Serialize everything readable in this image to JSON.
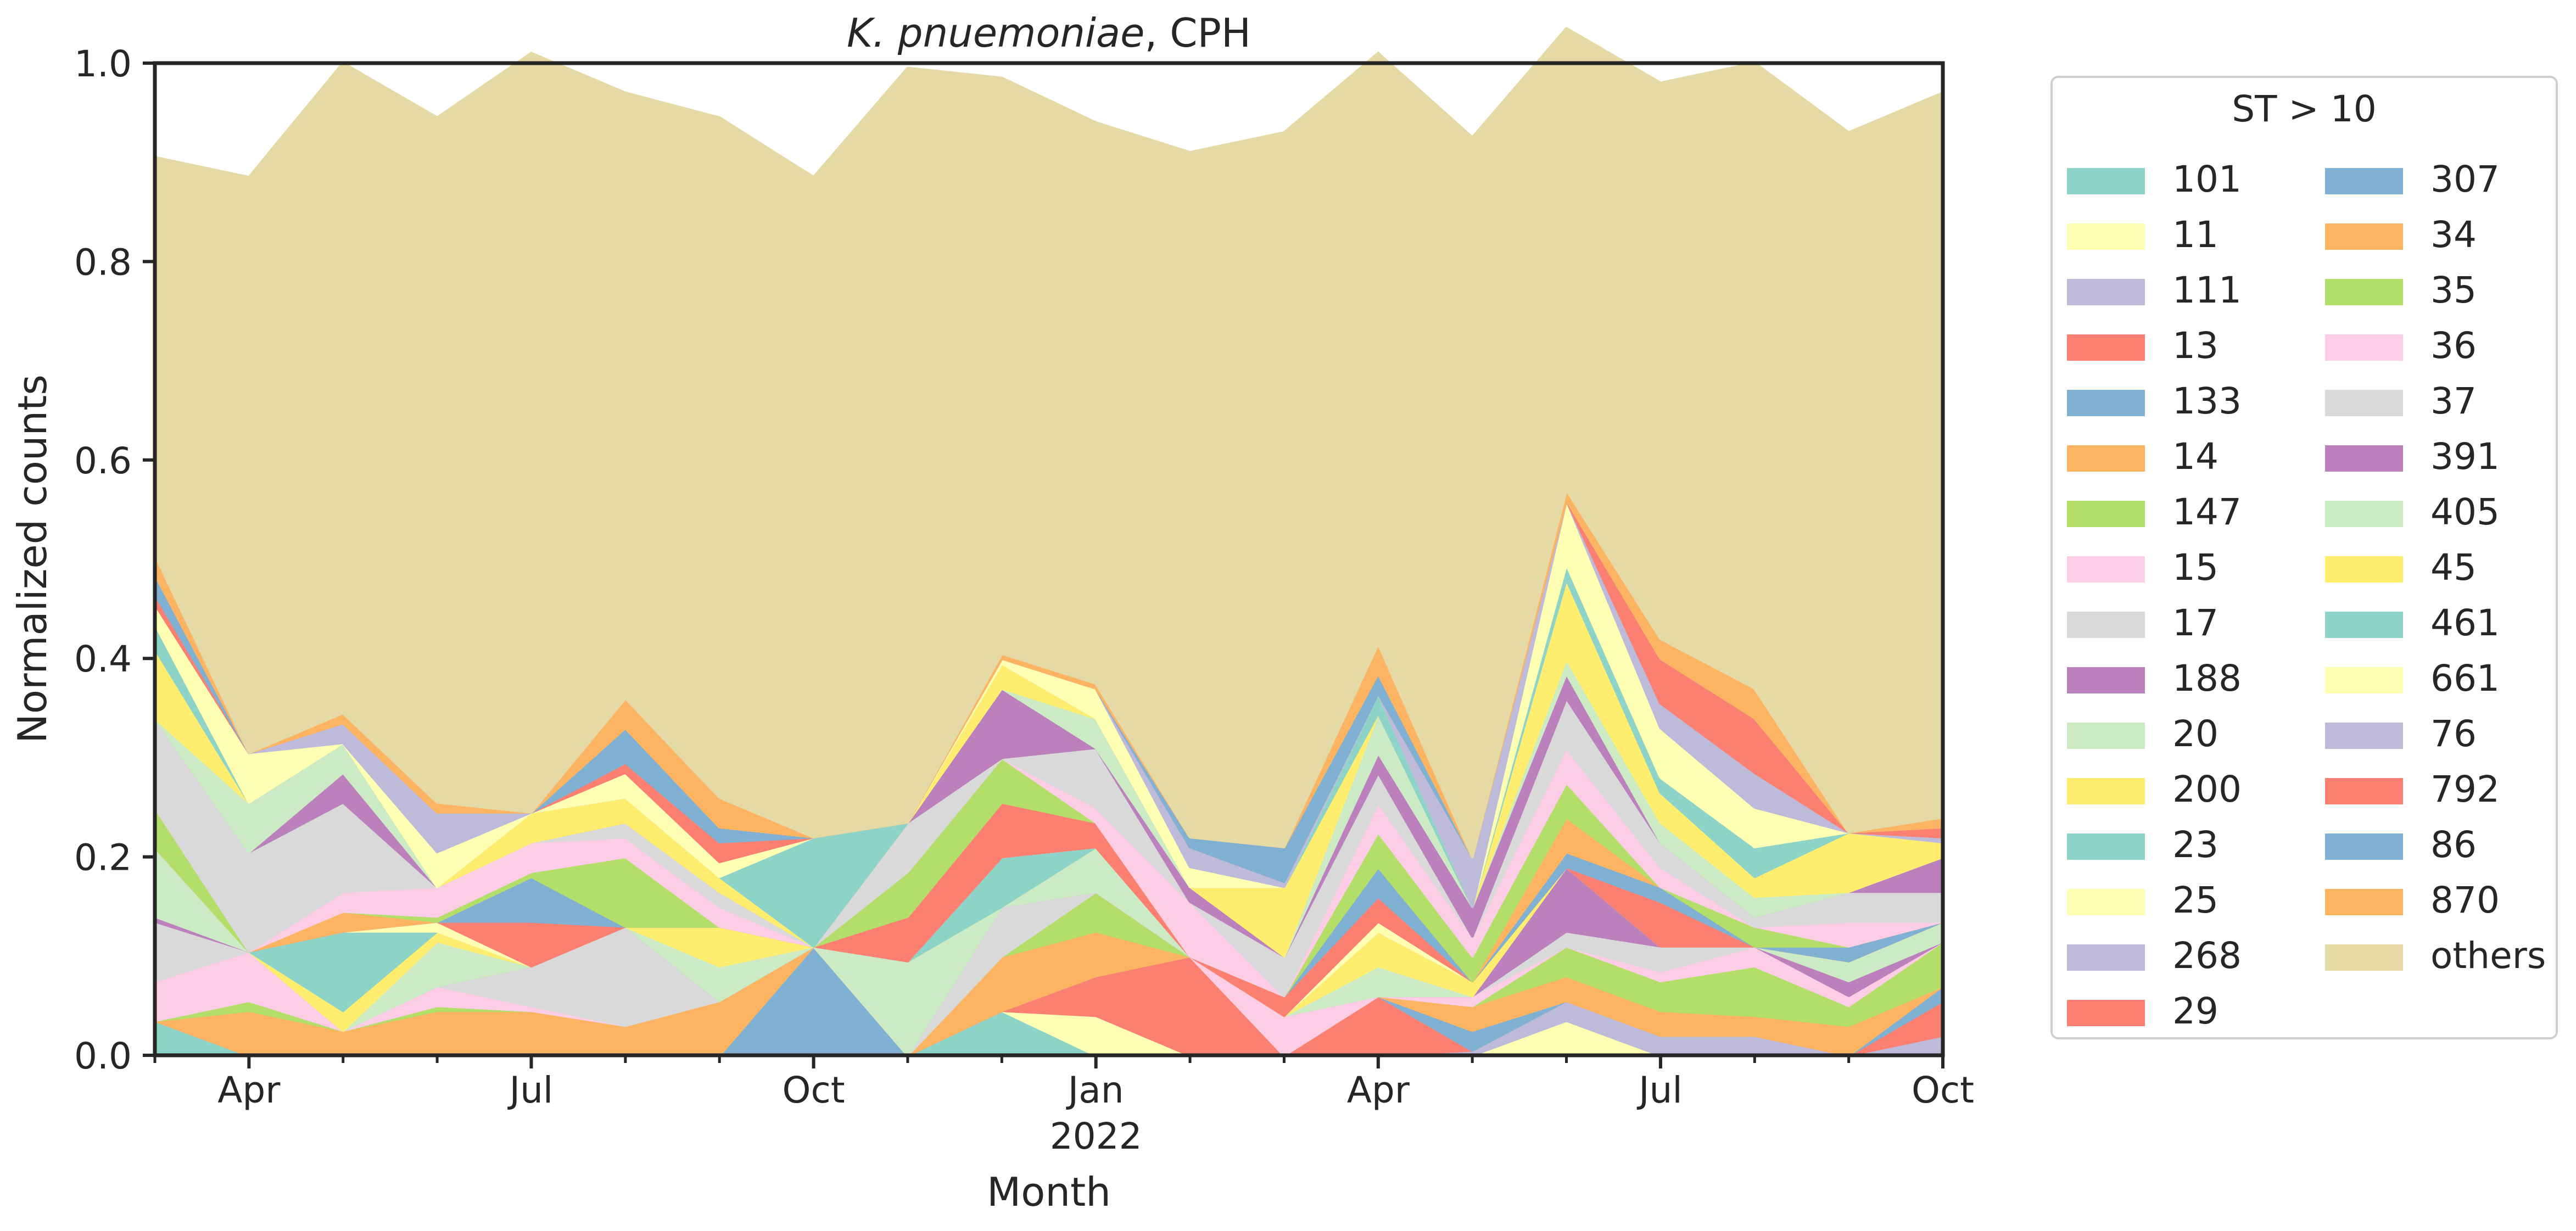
{
  "chart_data": {
    "type": "area",
    "stacked": true,
    "normalized": true,
    "title_italic": "K. pnuemoniae",
    "title_rest": ", CPH",
    "xlabel": "Month",
    "ylabel": "Normalized counts",
    "ylim": [
      0,
      1
    ],
    "y_ticks": [
      "0.0",
      "0.2",
      "0.4",
      "0.6",
      "0.8",
      "1.0"
    ],
    "x_months": [
      "2021-03",
      "2021-04",
      "2021-05",
      "2021-06",
      "2021-07",
      "2021-08",
      "2021-09",
      "2021-10",
      "2021-11",
      "2021-12",
      "2022-01",
      "2022-02",
      "2022-03",
      "2022-04",
      "2022-05",
      "2022-06",
      "2022-07",
      "2022-08",
      "2022-09",
      "2022-10"
    ],
    "x_tick_labels": [
      {
        "month": "2021-04",
        "label": "Apr"
      },
      {
        "month": "2021-07",
        "label": "Jul"
      },
      {
        "month": "2021-10",
        "label": "Oct"
      },
      {
        "month": "2022-01",
        "label": "Jan",
        "sublabel": "2022"
      },
      {
        "month": "2022-04",
        "label": "Apr"
      },
      {
        "month": "2022-07",
        "label": "Jul"
      },
      {
        "month": "2022-10",
        "label": "Oct"
      }
    ],
    "legend_title": "ST > 10",
    "legend_position": "outside-right",
    "series": [
      {
        "name": "101",
        "color": "#8dd3c7",
        "values": [
          0.035,
          0,
          0,
          0,
          0,
          0,
          0,
          0,
          0,
          0.045,
          0,
          0,
          0,
          0,
          0,
          0,
          0,
          0,
          0,
          0
        ]
      },
      {
        "name": "11",
        "color": "#ffffb3",
        "values": [
          0,
          0,
          0,
          0,
          0,
          0,
          0,
          0,
          0,
          0,
          0.04,
          0,
          0,
          0,
          0,
          0.035,
          0,
          0,
          0,
          0
        ]
      },
      {
        "name": "111",
        "color": "#bebada",
        "values": [
          0,
          0,
          0,
          0,
          0,
          0,
          0,
          0,
          0,
          0,
          0,
          0,
          0,
          0,
          0.005,
          0.02,
          0.02,
          0.02,
          0,
          0.02
        ]
      },
      {
        "name": "13",
        "color": "#fb8072",
        "values": [
          0,
          0,
          0,
          0,
          0,
          0,
          0,
          0,
          0,
          0,
          0.04,
          0.1,
          0,
          0.06,
          0,
          0,
          0,
          0,
          0,
          0.035
        ]
      },
      {
        "name": "133",
        "color": "#80b1d3",
        "values": [
          0,
          0,
          0,
          0,
          0,
          0,
          0,
          0.11,
          0,
          0,
          0,
          0,
          0,
          0,
          0.02,
          0,
          0,
          0,
          0,
          0.015
        ]
      },
      {
        "name": "14",
        "color": "#fdb462",
        "values": [
          0,
          0.045,
          0.025,
          0.045,
          0.045,
          0.03,
          0.055,
          0,
          0,
          0.055,
          0.045,
          0,
          0,
          0,
          0.025,
          0.025,
          0.025,
          0.02,
          0.03,
          0
        ]
      },
      {
        "name": "147",
        "color": "#b3de69",
        "values": [
          0,
          0.01,
          0,
          0.005,
          0,
          0,
          0,
          0,
          0,
          0,
          0.04,
          0,
          0,
          0,
          0,
          0.03,
          0.03,
          0.05,
          0.02,
          0.045
        ]
      },
      {
        "name": "15",
        "color": "#fccde5",
        "values": [
          0.04,
          0.05,
          0,
          0.02,
          0.005,
          0,
          0,
          0,
          0,
          0,
          0,
          0,
          0.04,
          0,
          0.01,
          0,
          0.01,
          0.02,
          0.01,
          0
        ]
      },
      {
        "name": "17",
        "color": "#d9d9d9",
        "values": [
          0.06,
          0,
          0,
          0,
          0.04,
          0.1,
          0,
          0,
          0,
          0.05,
          0,
          0,
          0,
          0,
          0,
          0.015,
          0.025,
          0,
          0,
          0
        ]
      },
      {
        "name": "188",
        "color": "#bc80bd",
        "values": [
          0.005,
          0,
          0,
          0,
          0,
          0,
          0,
          0,
          0,
          0,
          0,
          0,
          0,
          0,
          0,
          0.065,
          0,
          0,
          0.015,
          0
        ]
      },
      {
        "name": "20",
        "color": "#ccebc5",
        "values": [
          0.07,
          0,
          0,
          0.045,
          0,
          0,
          0.035,
          0,
          0.095,
          0,
          0.045,
          0,
          0,
          0.03,
          0,
          0,
          0,
          0,
          0.02,
          0.02
        ]
      },
      {
        "name": "200",
        "color": "#ffed6f",
        "values": [
          0,
          0,
          0.02,
          0.01,
          0,
          0,
          0.04,
          0,
          0,
          0,
          0,
          0,
          0,
          0.035,
          0.015,
          0,
          0,
          0,
          0,
          0
        ]
      },
      {
        "name": "23",
        "color": "#8dd3c7",
        "values": [
          0,
          0,
          0.08,
          0,
          0,
          0,
          0,
          0,
          0,
          0.05,
          0,
          0,
          0,
          0,
          0,
          0,
          0,
          0,
          0,
          0
        ]
      },
      {
        "name": "25",
        "color": "#ffffb3",
        "values": [
          0,
          0,
          0,
          0.01,
          0,
          0,
          0,
          0,
          0,
          0,
          0,
          0,
          0,
          0.01,
          0,
          0,
          0,
          0,
          0,
          0
        ]
      },
      {
        "name": "268",
        "color": "#bebada",
        "values": [
          0,
          0,
          0,
          0,
          0,
          0,
          0,
          0,
          0,
          0,
          0,
          0,
          0,
          0,
          0,
          0,
          0,
          0,
          0,
          0
        ]
      },
      {
        "name": "29",
        "color": "#fb8072",
        "values": [
          0,
          0,
          0,
          0,
          0.045,
          0,
          0,
          0,
          0.045,
          0.055,
          0.025,
          0,
          0.02,
          0.025,
          0,
          0,
          0.045,
          0,
          0,
          0
        ]
      },
      {
        "name": "307",
        "color": "#80b1d3",
        "values": [
          0,
          0,
          0,
          0,
          0.045,
          0,
          0,
          0,
          0,
          0,
          0,
          0,
          0,
          0.03,
          0,
          0.015,
          0.015,
          0,
          0.015,
          0
        ]
      },
      {
        "name": "34",
        "color": "#fdb462",
        "values": [
          0,
          0,
          0.02,
          0,
          0,
          0,
          0,
          0,
          0,
          0,
          0,
          0,
          0,
          0,
          0,
          0.035,
          0,
          0,
          0,
          0
        ]
      },
      {
        "name": "35",
        "color": "#b3de69",
        "values": [
          0.04,
          0,
          0,
          0.005,
          0.005,
          0.07,
          0,
          0,
          0.045,
          0.045,
          0,
          0,
          0,
          0.035,
          0.025,
          0.035,
          0,
          0.02,
          0,
          0
        ]
      },
      {
        "name": "36",
        "color": "#fccde5",
        "values": [
          0,
          0,
          0.02,
          0.03,
          0.03,
          0.02,
          0.02,
          0,
          0,
          0,
          0.015,
          0.055,
          0,
          0.03,
          0.02,
          0.035,
          0.02,
          0,
          0.025,
          0
        ]
      },
      {
        "name": "37",
        "color": "#d9d9d9",
        "values": [
          0.09,
          0.1,
          0.09,
          0,
          0,
          0.015,
          0.015,
          0,
          0.05,
          0,
          0.06,
          0,
          0.04,
          0.03,
          0,
          0.05,
          0.025,
          0.01,
          0.03,
          0.03
        ]
      },
      {
        "name": "391",
        "color": "#bc80bd",
        "values": [
          0,
          0,
          0.03,
          0,
          0,
          0,
          0,
          0,
          0,
          0.07,
          0,
          0.015,
          0,
          0.02,
          0.03,
          0.025,
          0,
          0,
          0,
          0.035
        ]
      },
      {
        "name": "405",
        "color": "#ccebc5",
        "values": [
          0,
          0.05,
          0.03,
          0,
          0,
          0,
          0,
          0,
          0,
          0,
          0.03,
          0,
          0,
          0.04,
          0,
          0.015,
          0.02,
          0.02,
          0,
          0
        ]
      },
      {
        "name": "45",
        "color": "#ffed6f",
        "values": [
          0.07,
          0,
          0,
          0,
          0.03,
          0.025,
          0.015,
          0,
          0,
          0.025,
          0,
          0,
          0.07,
          0,
          0,
          0.08,
          0.03,
          0.02,
          0.06,
          0.015
        ]
      },
      {
        "name": "461",
        "color": "#8dd3c7",
        "values": [
          0.025,
          0,
          0,
          0,
          0,
          0,
          0,
          0.11,
          0,
          0,
          0,
          0,
          0,
          0.02,
          0,
          0.015,
          0.015,
          0.03,
          0,
          0
        ]
      },
      {
        "name": "661",
        "color": "#ffffb3",
        "values": [
          0.02,
          0.05,
          0,
          0.035,
          0,
          0.025,
          0.015,
          0,
          0,
          0.005,
          0.03,
          0.02,
          0,
          0,
          0,
          0.065,
          0.05,
          0.04,
          0,
          0
        ]
      },
      {
        "name": "76",
        "color": "#bebada",
        "values": [
          0,
          0,
          0.02,
          0.04,
          0,
          0,
          0,
          0,
          0,
          0,
          0,
          0.02,
          0.005,
          0,
          0.05,
          0,
          0.025,
          0.035,
          0,
          0.005
        ]
      },
      {
        "name": "792",
        "color": "#fb8072",
        "values": [
          0.01,
          0,
          0,
          0,
          0,
          0.01,
          0.02,
          0,
          0,
          0,
          0,
          0,
          0,
          0,
          0,
          0,
          0.045,
          0.055,
          0,
          0.01
        ]
      },
      {
        "name": "86",
        "color": "#80b1d3",
        "values": [
          0.02,
          0,
          0,
          0,
          0,
          0.035,
          0.015,
          0,
          0,
          0,
          0,
          0.01,
          0.035,
          0.02,
          0,
          0,
          0,
          0,
          0,
          0
        ]
      },
      {
        "name": "870",
        "color": "#fdb462",
        "values": [
          0.02,
          0,
          0.01,
          0.01,
          0,
          0.03,
          0.03,
          0,
          0,
          0.005,
          0.005,
          0,
          0,
          0.03,
          0,
          0.01,
          0.02,
          0.03,
          0,
          0.01
        ]
      },
      {
        "name": "others",
        "color": "#e5d9a6",
        "values": [
          0.4,
          0.58,
          0.655,
          0.69,
          0.765,
          0.61,
          0.685,
          0.665,
          0.76,
          0.58,
          0.565,
          0.69,
          0.72,
          0.595,
          0.725,
          0.465,
          0.56,
          0.63,
          0.705,
          0.73
        ]
      }
    ]
  }
}
